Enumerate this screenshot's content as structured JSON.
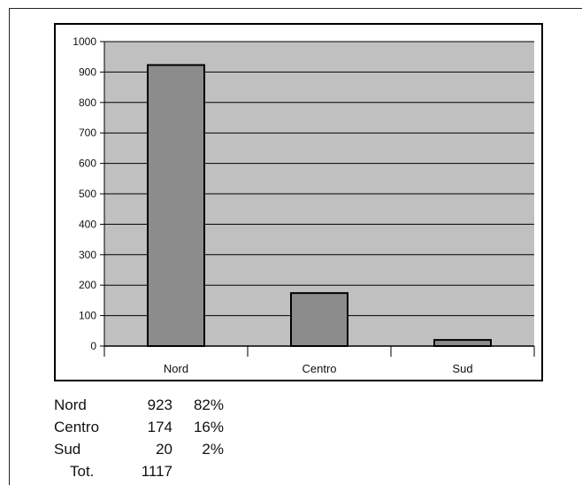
{
  "chart_data": {
    "type": "bar",
    "categories": [
      "Nord",
      "Centro",
      "Sud"
    ],
    "values": [
      923,
      174,
      20
    ],
    "ylim": [
      0,
      1000
    ],
    "yticks": [
      0,
      100,
      200,
      300,
      400,
      500,
      600,
      700,
      800,
      900,
      1000
    ],
    "grid": true,
    "legend": "none",
    "colors": {
      "bar_fill": "#8c8c8c",
      "bar_stroke": "#000000",
      "plot_background": "#c0c0c0",
      "grid": "#000000"
    }
  },
  "summary": {
    "rows": [
      {
        "name": "Nord",
        "count": "923",
        "pct": "82%"
      },
      {
        "name": "Centro",
        "count": "174",
        "pct": "16%"
      },
      {
        "name": "Sud",
        "count": "20",
        "pct": "2%"
      }
    ],
    "total_label": "Tot.",
    "total_value": "1117"
  }
}
